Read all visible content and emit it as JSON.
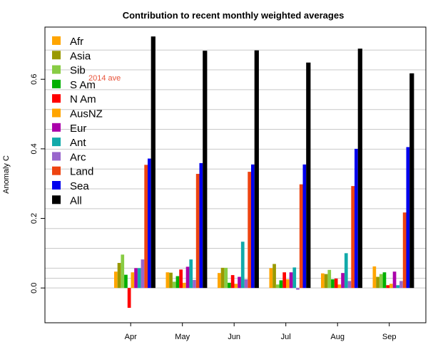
{
  "chart_data": {
    "type": "bar",
    "title": "Contribution to recent monthly weighted averages",
    "xlabel": "",
    "ylabel": "Anomaly C",
    "ylim": [
      -0.1,
      0.75
    ],
    "yticks": [
      0.0,
      0.2,
      0.4,
      0.6
    ],
    "ytick_labels": [
      "0.0",
      "0.2",
      "0.4",
      "0.6"
    ],
    "grid": true,
    "legend_position": "top-left",
    "categories": [
      "Apr",
      "May",
      "Jun",
      "Jul",
      "Aug",
      "Sep"
    ],
    "series": [
      {
        "name": "Afr",
        "color": "#ffa500",
        "values": [
          0.047,
          0.045,
          0.043,
          0.057,
          0.042,
          0.062
        ]
      },
      {
        "name": "Asia",
        "color": "#999900",
        "values": [
          0.072,
          0.044,
          0.058,
          0.069,
          0.04,
          0.032
        ]
      },
      {
        "name": "Sib",
        "color": "#88cc44",
        "values": [
          0.096,
          0.018,
          0.058,
          0.01,
          0.052,
          0.04
        ]
      },
      {
        "name": "S Am",
        "color": "#00b000",
        "values": [
          0.038,
          0.034,
          0.015,
          0.022,
          0.025,
          0.045
        ]
      },
      {
        "name": "N Am",
        "color": "#ff0000",
        "values": [
          -0.057,
          0.053,
          0.037,
          0.045,
          0.027,
          0.008
        ]
      },
      {
        "name": "AusNZ",
        "color": "#ffa500",
        "values": [
          0.045,
          0.015,
          0.012,
          0.025,
          0.01,
          0.012
        ]
      },
      {
        "name": "Eur",
        "color": "#aa00aa",
        "values": [
          0.057,
          0.061,
          0.032,
          0.045,
          0.043,
          0.047
        ]
      },
      {
        "name": "Ant",
        "color": "#11aaaa",
        "values": [
          0.057,
          0.082,
          0.133,
          0.059,
          0.1,
          0.008
        ]
      },
      {
        "name": "Arc",
        "color": "#9966cc",
        "values": [
          0.082,
          0.023,
          0.025,
          -0.005,
          0.02,
          0.02
        ]
      },
      {
        "name": "Land",
        "color": "#ee4411",
        "values": [
          0.354,
          0.328,
          0.334,
          0.298,
          0.293,
          0.217
        ]
      },
      {
        "name": "Sea",
        "color": "#0000ee",
        "values": [
          0.372,
          0.359,
          0.355,
          0.355,
          0.4,
          0.405
        ]
      },
      {
        "name": "All",
        "color": "#000000",
        "values": [
          0.723,
          0.682,
          0.683,
          0.648,
          0.688,
          0.617
        ]
      }
    ],
    "reference_lines": [
      0.0,
      0.028,
      0.057,
      0.114,
      0.171,
      0.228,
      0.285,
      0.342,
      0.399,
      0.456,
      0.513,
      0.57,
      0.627,
      0.684
    ],
    "annotations": [
      {
        "text": "2014 ave",
        "y": 0.605
      }
    ]
  }
}
